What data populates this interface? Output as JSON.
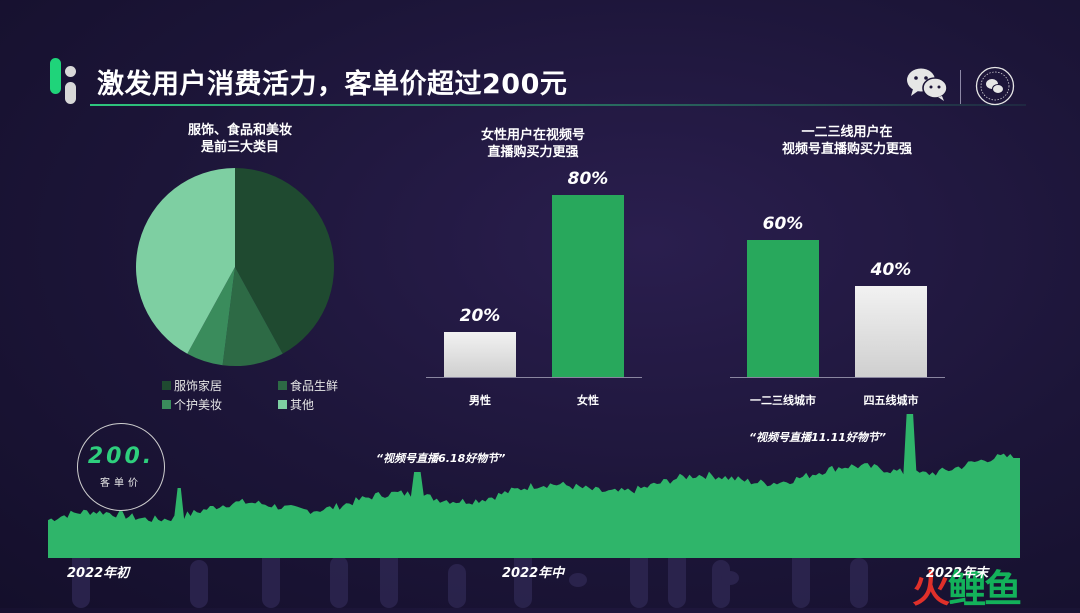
{
  "header": {
    "title": "激发用户消费活力，客单价超过200元",
    "wechat_icon": "wechat-icon",
    "seal_icon": "wechat-seal-icon"
  },
  "pie": {
    "caption_line1": "服饰、食品和美妆",
    "caption_line2": "是前三大类目",
    "legend": [
      {
        "label": "服饰家居",
        "color": "#1f4a30"
      },
      {
        "label": "食品生鲜",
        "color": "#2d6a45"
      },
      {
        "label": "个护美妆",
        "color": "#3a8c5c"
      },
      {
        "label": "其他",
        "color": "#7ecfa2"
      }
    ]
  },
  "gender": {
    "caption_line1": "女性用户在视频号",
    "caption_line2": "直播购买力更强"
  },
  "city": {
    "caption_line1": "一二三线用户在",
    "caption_line2": "视频号直播购买力更强"
  },
  "kpi": {
    "value": "200.",
    "label": "客单价"
  },
  "timeline": {
    "annotation_618": "“视频号直播6.18好物节”",
    "annotation_1111": "“视频号直播11.11好物节”",
    "start_label": "2022年初",
    "mid_label": "2022年中",
    "end_label": "2022年末"
  },
  "watermark": {
    "text_a": "火",
    "text_b": "鲤鱼"
  },
  "chart_data": [
    {
      "type": "pie",
      "categories": [
        "服饰家居",
        "食品生鲜",
        "个护美妆",
        "其他"
      ],
      "values": [
        42,
        10,
        6,
        42
      ],
      "colors": [
        "#1f4a30",
        "#2d6a45",
        "#3a8c5c",
        "#7ecfa2"
      ],
      "legend": "bottom"
    },
    {
      "type": "bar",
      "categories": [
        "男性",
        "女性"
      ],
      "values": [
        20,
        80
      ],
      "labels": [
        "20%",
        "80%"
      ],
      "colors": [
        "#e0e0e0",
        "#28a85c"
      ],
      "ylim": [
        0,
        100
      ]
    },
    {
      "type": "bar",
      "categories": [
        "一二三线城市",
        "四五线城市"
      ],
      "values": [
        60,
        40
      ],
      "labels": [
        "60%",
        "40%"
      ],
      "colors": [
        "#28a85c",
        "#e0e0e0"
      ],
      "ylim": [
        0,
        100
      ]
    },
    {
      "type": "area",
      "x": [
        "2022年初",
        "2022年中",
        "2022年末"
      ],
      "peaks": [
        "“视频号直播6.18好物节”",
        "“视频号直播11.11好物节”"
      ],
      "color": "#2fb56a"
    }
  ]
}
